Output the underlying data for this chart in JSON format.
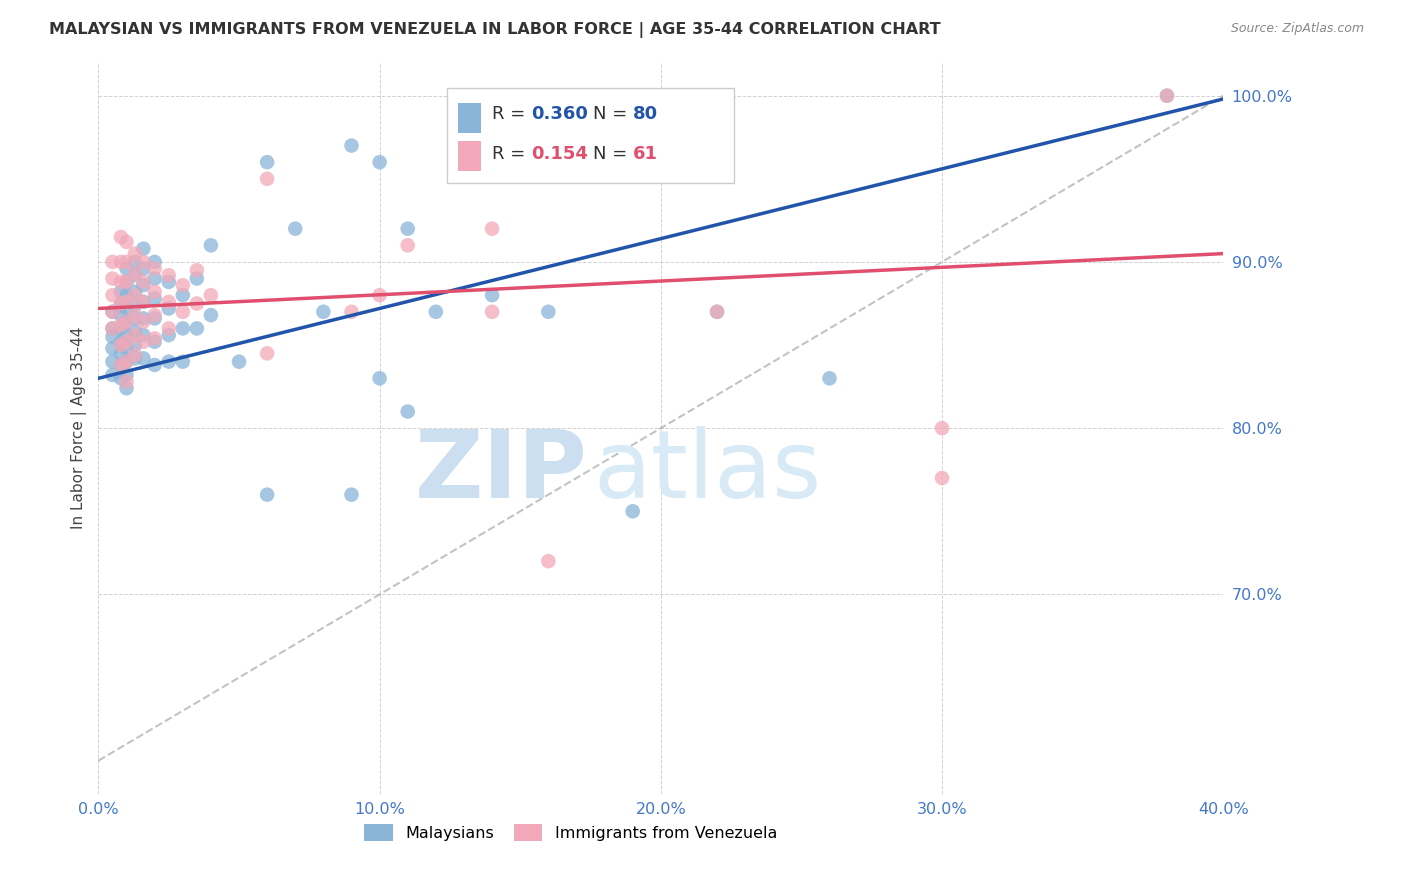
{
  "title": "MALAYSIAN VS IMMIGRANTS FROM VENEZUELA IN LABOR FORCE | AGE 35-44 CORRELATION CHART",
  "source": "Source: ZipAtlas.com",
  "ylabel": "In Labor Force | Age 35-44",
  "x_min": 0.0,
  "x_max": 0.4,
  "y_min": 0.58,
  "y_max": 1.02,
  "x_tick_labels": [
    "0.0%",
    "10.0%",
    "20.0%",
    "30.0%",
    "40.0%"
  ],
  "x_tick_vals": [
    0.0,
    0.1,
    0.2,
    0.3,
    0.4
  ],
  "y_tick_labels": [
    "100.0%",
    "90.0%",
    "80.0%",
    "70.0%"
  ],
  "y_tick_vals": [
    1.0,
    0.9,
    0.8,
    0.7
  ],
  "R_blue": 0.36,
  "N_blue": 80,
  "R_pink": 0.154,
  "N_pink": 61,
  "blue_color": "#8ab4d8",
  "pink_color": "#f2a8b8",
  "blue_line_color": "#2255aa",
  "pink_line_color": "#e0506e",
  "ref_line_color": "#aaaaaa",
  "axis_label_color": "#4477cc",
  "title_color": "#333333",
  "source_color": "#888888",
  "watermark_zip_color": "#ccdff0",
  "watermark_atlas_color": "#d8eaf6",
  "blue_scatter_x": [
    0.005,
    0.005,
    0.005,
    0.005,
    0.005,
    0.005,
    0.008,
    0.008,
    0.008,
    0.008,
    0.008,
    0.008,
    0.008,
    0.008,
    0.01,
    0.01,
    0.01,
    0.01,
    0.01,
    0.01,
    0.01,
    0.01,
    0.01,
    0.01,
    0.013,
    0.013,
    0.013,
    0.013,
    0.013,
    0.013,
    0.013,
    0.013,
    0.016,
    0.016,
    0.016,
    0.016,
    0.016,
    0.016,
    0.016,
    0.02,
    0.02,
    0.02,
    0.02,
    0.02,
    0.02,
    0.025,
    0.025,
    0.025,
    0.025,
    0.03,
    0.03,
    0.03,
    0.035,
    0.035,
    0.04,
    0.04,
    0.05,
    0.06,
    0.06,
    0.07,
    0.08,
    0.09,
    0.09,
    0.1,
    0.1,
    0.11,
    0.11,
    0.12,
    0.14,
    0.16,
    0.19,
    0.22,
    0.26,
    0.38
  ],
  "blue_scatter_y": [
    0.87,
    0.86,
    0.855,
    0.848,
    0.84,
    0.832,
    0.882,
    0.874,
    0.868,
    0.86,
    0.852,
    0.845,
    0.838,
    0.83,
    0.896,
    0.888,
    0.88,
    0.872,
    0.864,
    0.856,
    0.848,
    0.84,
    0.832,
    0.824,
    0.9,
    0.892,
    0.882,
    0.874,
    0.866,
    0.858,
    0.85,
    0.842,
    0.908,
    0.896,
    0.886,
    0.876,
    0.866,
    0.856,
    0.842,
    0.9,
    0.89,
    0.878,
    0.866,
    0.852,
    0.838,
    0.888,
    0.872,
    0.856,
    0.84,
    0.88,
    0.86,
    0.84,
    0.89,
    0.86,
    0.91,
    0.868,
    0.84,
    0.96,
    0.76,
    0.92,
    0.87,
    0.97,
    0.76,
    0.96,
    0.83,
    0.92,
    0.81,
    0.87,
    0.88,
    0.87,
    0.75,
    0.87,
    0.83,
    1.0
  ],
  "pink_scatter_x": [
    0.005,
    0.005,
    0.005,
    0.005,
    0.005,
    0.008,
    0.008,
    0.008,
    0.008,
    0.008,
    0.008,
    0.008,
    0.01,
    0.01,
    0.01,
    0.01,
    0.01,
    0.01,
    0.01,
    0.01,
    0.013,
    0.013,
    0.013,
    0.013,
    0.013,
    0.013,
    0.016,
    0.016,
    0.016,
    0.016,
    0.016,
    0.02,
    0.02,
    0.02,
    0.02,
    0.025,
    0.025,
    0.025,
    0.03,
    0.03,
    0.035,
    0.035,
    0.04,
    0.06,
    0.06,
    0.09,
    0.1,
    0.11,
    0.14,
    0.14,
    0.16,
    0.22,
    0.3,
    0.3,
    0.38
  ],
  "pink_scatter_y": [
    0.9,
    0.89,
    0.88,
    0.87,
    0.86,
    0.915,
    0.9,
    0.888,
    0.875,
    0.862,
    0.85,
    0.838,
    0.912,
    0.9,
    0.888,
    0.876,
    0.864,
    0.852,
    0.84,
    0.828,
    0.905,
    0.893,
    0.88,
    0.868,
    0.856,
    0.844,
    0.9,
    0.888,
    0.876,
    0.864,
    0.852,
    0.896,
    0.882,
    0.868,
    0.854,
    0.892,
    0.876,
    0.86,
    0.886,
    0.87,
    0.895,
    0.875,
    0.88,
    0.95,
    0.845,
    0.87,
    0.88,
    0.91,
    0.92,
    0.87,
    0.72,
    0.87,
    0.8,
    0.77,
    1.0
  ],
  "blue_trend_x": [
    0.0,
    0.4
  ],
  "blue_trend_y": [
    0.83,
    0.998
  ],
  "pink_trend_x": [
    0.0,
    0.4
  ],
  "pink_trend_y": [
    0.872,
    0.905
  ],
  "ref_line_x": [
    0.0,
    0.4
  ],
  "ref_line_y": [
    0.6,
    1.0
  ]
}
